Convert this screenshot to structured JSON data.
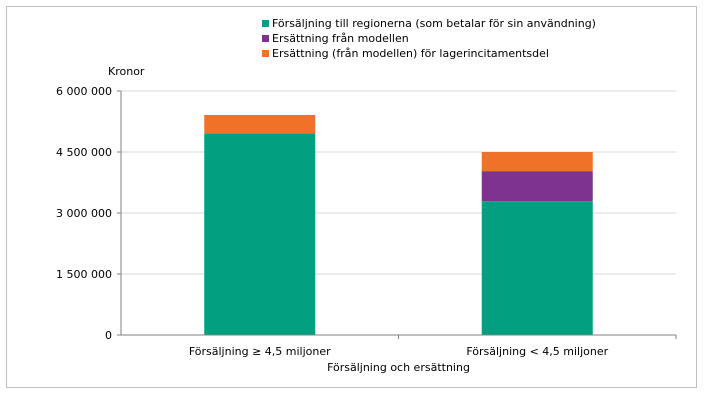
{
  "chart_data": {
    "type": "bar",
    "stacked": true,
    "categories": [
      "Försäljning ≥ 4,5 miljoner",
      "Försäljning < 4,5 miljoner"
    ],
    "series": [
      {
        "name": "Försäljning till regionerna (som betalar för sin användning)",
        "color": "#00a081",
        "values": [
          4960000,
          3290000
        ]
      },
      {
        "name": "Ersättning från modellen",
        "color": "#7f3391",
        "values": [
          0,
          740000
        ]
      },
      {
        "name": "Ersättning (från modellen) för lagerincitamentsdel",
        "color": "#f07226",
        "values": [
          450000,
          470000
        ]
      }
    ],
    "ylabel": "Kronor",
    "xlabel": "Försäljning och ersättning",
    "ylim": [
      0,
      6000000
    ],
    "yticks": [
      0,
      1500000,
      3000000,
      4500000,
      6000000
    ],
    "ytick_labels": [
      "0",
      "1 500 000",
      "3 000 000",
      "4 500 000",
      "6 000 000"
    ],
    "grid": true,
    "legend_position": "top-center"
  }
}
